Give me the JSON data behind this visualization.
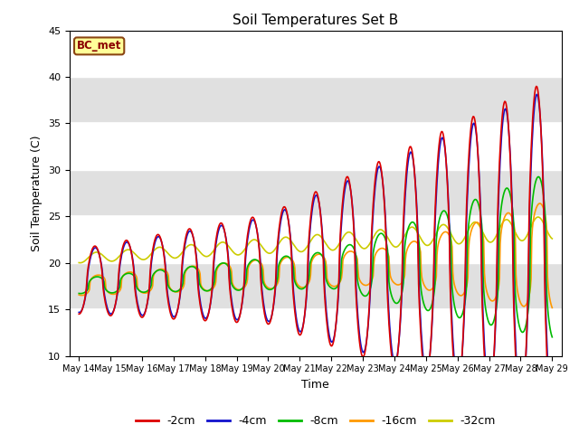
{
  "title": "Soil Temperatures Set B",
  "xlabel": "Time",
  "ylabel": "Soil Temperature (C)",
  "ylim": [
    10,
    45
  ],
  "label_text": "BC_met",
  "series_labels": [
    "-2cm",
    "-4cm",
    "-8cm",
    "-16cm",
    "-32cm"
  ],
  "series_colors": [
    "#dd0000",
    "#1111cc",
    "#00bb00",
    "#ff9900",
    "#cccc00"
  ],
  "background_color": "#ffffff",
  "plot_bg_color": "#e0e0e0",
  "start_day": 14,
  "end_day": 29
}
